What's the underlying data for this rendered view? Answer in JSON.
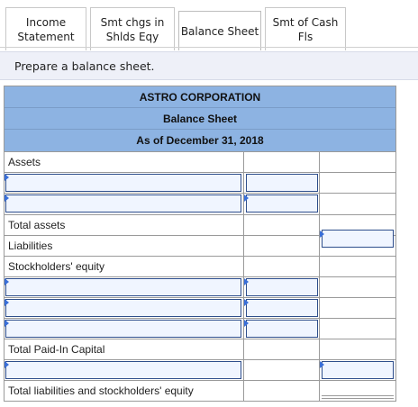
{
  "tabs": [
    {
      "label": "Income\nStatement"
    },
    {
      "label": "Smt chgs in\nShlds Eqy"
    },
    {
      "label": "Balance Sheet"
    },
    {
      "label": "Smt of Cash\nFls"
    }
  ],
  "prompt": "Prepare a balance sheet.",
  "sheet": {
    "company": "ASTRO CORPORATION",
    "statement": "Balance Sheet",
    "date": "As of December 31, 2018",
    "labels": {
      "assets": "Assets",
      "total_assets": "Total assets",
      "liabilities": "Liabilities",
      "equity": "Stockholders' equity",
      "total_paid_in": "Total Paid-In Capital",
      "total_le": "Total liabilities and stockholders' equity"
    }
  },
  "colors": {
    "header_bg": "#8db3e2",
    "input_border": "#2e4e8c",
    "input_bg": "#f0f5ff",
    "prompt_bg": "#eef0f8"
  }
}
